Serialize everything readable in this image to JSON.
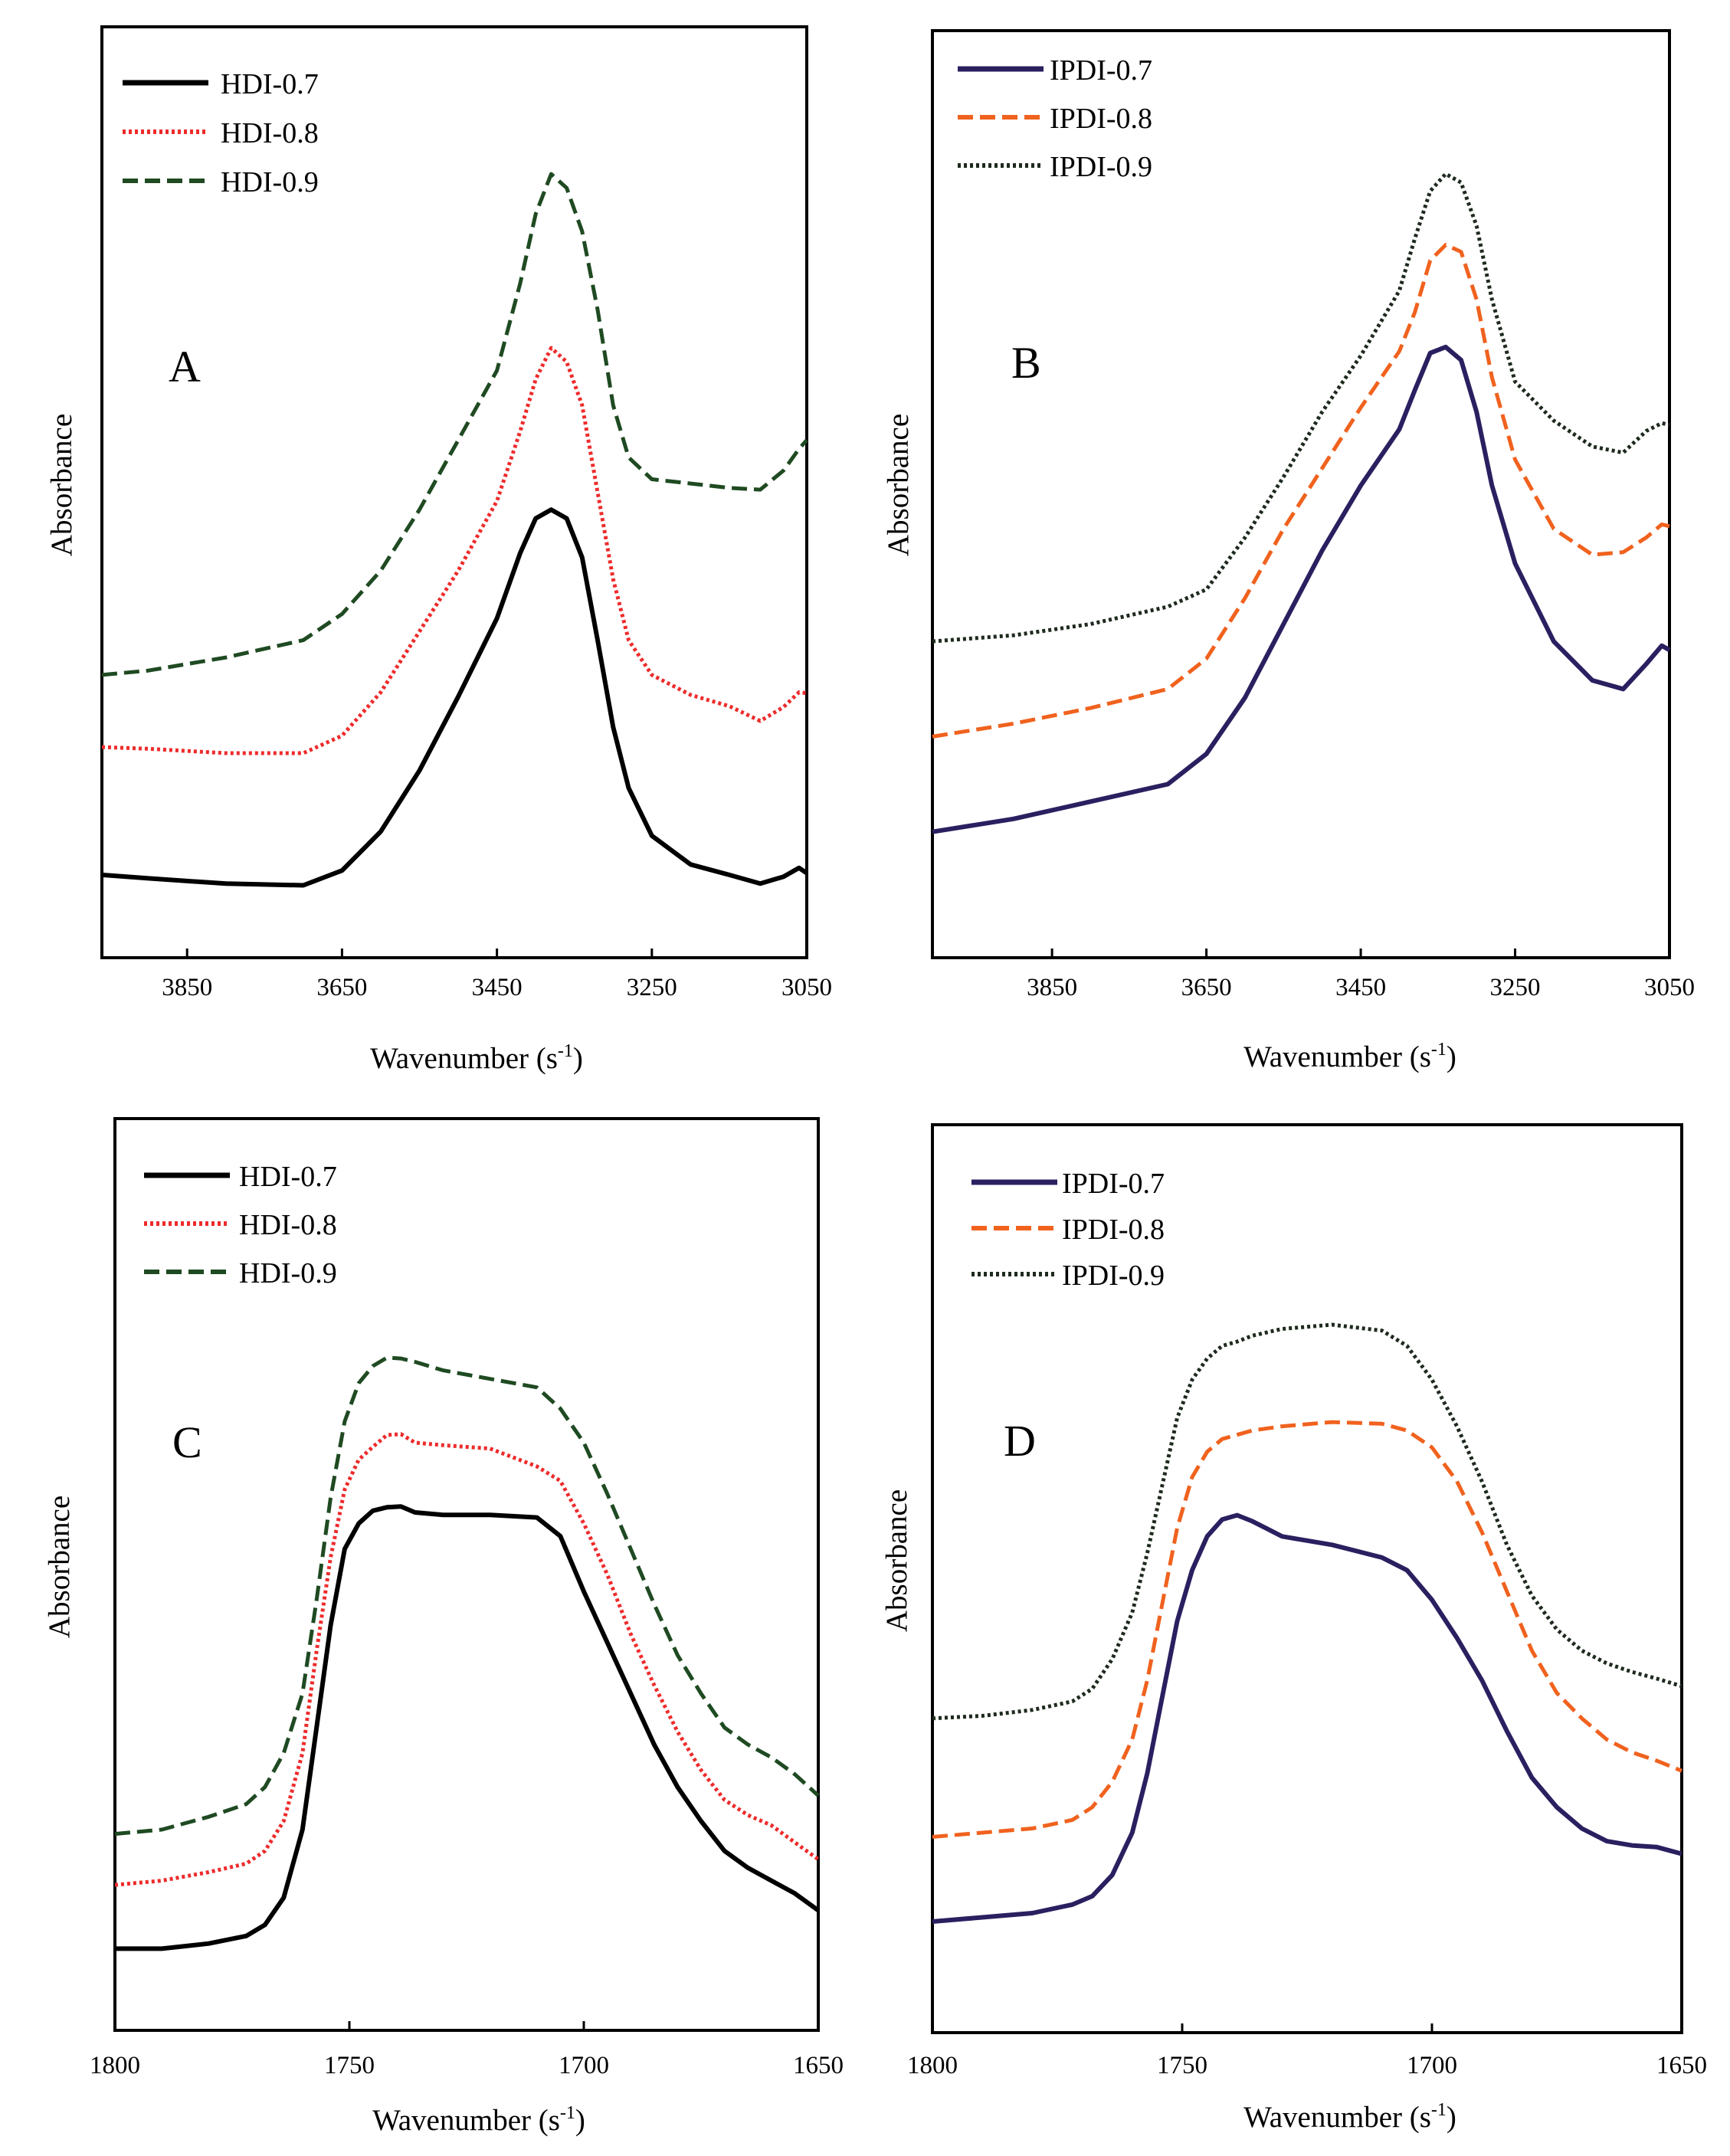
{
  "chart_data": [
    {
      "panel": "A",
      "type": "line",
      "xlabel": "Wavenumber (s",
      "xlabel_sup": "-1",
      "xlabel_close": ")",
      "ylabel": "Absorbance",
      "xlim": [
        3960,
        3050
      ],
      "ylim": [
        0,
        100
      ],
      "xticks": [
        3850,
        3650,
        3450,
        3250,
        3050
      ],
      "legend_position": "top-left",
      "series": [
        {
          "name": "HDI-0.7",
          "color": "#000000",
          "style": "solid",
          "x": [
            3960,
            3900,
            3800,
            3700,
            3650,
            3600,
            3550,
            3500,
            3450,
            3420,
            3400,
            3380,
            3360,
            3340,
            3320,
            3300,
            3280,
            3250,
            3200,
            3150,
            3110,
            3080,
            3060,
            3050
          ],
          "y": [
            6,
            5.6,
            5,
            4.8,
            6.5,
            11,
            18,
            26.5,
            35.5,
            43,
            47,
            48,
            47,
            42.5,
            33,
            23,
            16,
            10.5,
            7.2,
            6,
            5,
            5.8,
            6.8,
            6.2
          ]
        },
        {
          "name": "HDI-0.8",
          "color": "#ee2b2b",
          "style": "dotted",
          "x": [
            3960,
            3900,
            3800,
            3700,
            3650,
            3600,
            3550,
            3500,
            3450,
            3420,
            3400,
            3380,
            3360,
            3340,
            3320,
            3300,
            3280,
            3250,
            3200,
            3150,
            3110,
            3080,
            3060,
            3050
          ],
          "y": [
            20.7,
            20.5,
            20,
            20,
            22,
            27,
            34,
            41,
            49,
            57,
            63,
            66.6,
            65,
            60,
            50,
            40,
            33,
            29,
            26.7,
            25.4,
            23.7,
            25.3,
            27,
            26.9
          ]
        },
        {
          "name": "HDI-0.9",
          "color": "#1f4a22",
          "style": "dashed",
          "x": [
            3960,
            3900,
            3800,
            3700,
            3650,
            3600,
            3550,
            3500,
            3450,
            3420,
            3400,
            3380,
            3360,
            3340,
            3320,
            3300,
            3280,
            3250,
            3200,
            3150,
            3110,
            3080,
            3060,
            3050
          ],
          "y": [
            29,
            29.5,
            31,
            33,
            36,
            41,
            48,
            56,
            64,
            74,
            82,
            86.6,
            85,
            80,
            71,
            60,
            54,
            51.5,
            51,
            50.5,
            50.3,
            52.5,
            55,
            56
          ]
        }
      ]
    },
    {
      "panel": "B",
      "type": "line",
      "xlabel": "Wavenumber (s",
      "xlabel_sup": "-1",
      "xlabel_close": ")",
      "ylabel": "Absorbance",
      "xlim": [
        4005,
        3050
      ],
      "ylim": [
        0,
        100
      ],
      "xticks": [
        3850,
        3650,
        3450,
        3250,
        3050
      ],
      "legend_position": "top-left",
      "series": [
        {
          "name": "IPDI-0.7",
          "color": "#2a2060",
          "style": "solid",
          "x": [
            4005,
            3900,
            3800,
            3700,
            3650,
            3600,
            3550,
            3500,
            3450,
            3400,
            3380,
            3360,
            3340,
            3320,
            3300,
            3280,
            3250,
            3200,
            3150,
            3110,
            3080,
            3060,
            3050
          ],
          "y": [
            11,
            12.5,
            14.5,
            16.5,
            20,
            26.5,
            35,
            43.5,
            51,
            57.5,
            62,
            66.3,
            67,
            65.5,
            59.5,
            51,
            42,
            33,
            28.5,
            27.5,
            30.4,
            32.5,
            32
          ]
        },
        {
          "name": "IPDI-0.8",
          "color": "#f0621e",
          "style": "dashed",
          "x": [
            4005,
            3900,
            3800,
            3700,
            3650,
            3600,
            3550,
            3500,
            3450,
            3400,
            3380,
            3360,
            3340,
            3320,
            3300,
            3280,
            3250,
            3200,
            3150,
            3110,
            3080,
            3060,
            3050
          ],
          "y": [
            22,
            23.5,
            25.3,
            27.5,
            31,
            38,
            46,
            53,
            60,
            66.5,
            71,
            77,
            78.8,
            78,
            72.5,
            63.5,
            54,
            46,
            43,
            43.3,
            45,
            46.5,
            46.3
          ]
        },
        {
          "name": "IPDI-0.9",
          "color": "#1e2a1e",
          "style": "dotted",
          "x": [
            4005,
            3900,
            3800,
            3700,
            3650,
            3600,
            3550,
            3500,
            3450,
            3400,
            3380,
            3360,
            3340,
            3320,
            3300,
            3280,
            3250,
            3200,
            3150,
            3110,
            3080,
            3060,
            3050
          ],
          "y": [
            33,
            33.7,
            35,
            37,
            39,
            45,
            52,
            59.5,
            66,
            73.5,
            79.5,
            85,
            87,
            86,
            81,
            72.5,
            63,
            58.5,
            55.5,
            54.8,
            57.3,
            58.2,
            58
          ]
        }
      ]
    },
    {
      "panel": "C",
      "type": "line",
      "xlabel": "Wavenumber (s",
      "xlabel_sup": "-1",
      "xlabel_close": ")",
      "ylabel": "Absorbance",
      "xlim": [
        1800,
        1650
      ],
      "ylim": [
        0,
        100
      ],
      "xticks": [
        1800,
        1750,
        1700,
        1650
      ],
      "legend_position": "top-left",
      "series": [
        {
          "name": "HDI-0.7",
          "color": "#000000",
          "style": "solid",
          "x": [
            1800,
            1790,
            1780,
            1772,
            1768,
            1764,
            1760,
            1757,
            1754,
            1751,
            1748,
            1745,
            1742,
            1739,
            1736,
            1730,
            1720,
            1710,
            1705,
            1700,
            1695,
            1690,
            1685,
            1680,
            1675,
            1670,
            1665,
            1660,
            1655,
            1650
          ],
          "y": [
            6,
            6,
            6.6,
            7.5,
            8.8,
            12,
            20,
            32,
            44,
            53,
            56,
            57.5,
            57.9,
            58,
            57.3,
            57,
            57,
            56.7,
            54.5,
            48,
            42,
            36,
            30,
            25,
            21,
            17.5,
            15.5,
            14,
            12.5,
            10.5
          ]
        },
        {
          "name": "HDI-0.8",
          "color": "#ee2b2b",
          "style": "dotted",
          "x": [
            1800,
            1790,
            1780,
            1772,
            1768,
            1764,
            1760,
            1757,
            1754,
            1751,
            1748,
            1745,
            1742,
            1739,
            1736,
            1730,
            1720,
            1710,
            1705,
            1700,
            1695,
            1690,
            1685,
            1680,
            1675,
            1670,
            1665,
            1660,
            1655,
            1650
          ],
          "y": [
            13.5,
            14,
            15,
            16,
            17.5,
            21,
            29,
            41,
            52,
            60,
            63.5,
            65,
            66.4,
            66.5,
            65.5,
            65.2,
            64.8,
            62.7,
            61,
            56,
            50,
            43,
            37,
            31.5,
            27,
            23.5,
            21.7,
            20.5,
            18.5,
            16.5
          ]
        },
        {
          "name": "HDI-0.9",
          "color": "#1f4a22",
          "style": "dashed",
          "x": [
            1800,
            1790,
            1780,
            1772,
            1768,
            1764,
            1760,
            1757,
            1754,
            1751,
            1748,
            1745,
            1742,
            1739,
            1736,
            1730,
            1720,
            1710,
            1705,
            1700,
            1695,
            1690,
            1685,
            1680,
            1675,
            1670,
            1665,
            1660,
            1655,
            1650
          ],
          "y": [
            19.5,
            20,
            21.5,
            23,
            25,
            29,
            36,
            47,
            59,
            68,
            72.5,
            74.5,
            75.5,
            75.4,
            75,
            74,
            73,
            72,
            69.5,
            65.5,
            59.5,
            53,
            46.5,
            40.5,
            36,
            32,
            30,
            28.5,
            26.5,
            24
          ]
        }
      ]
    },
    {
      "panel": "D",
      "type": "line",
      "xlabel": "Wavenumber (s",
      "xlabel_sup": "-1",
      "xlabel_close": ")",
      "ylabel": "Absorbance",
      "xlim": [
        1800,
        1650
      ],
      "ylim": [
        0,
        100
      ],
      "xticks": [
        1800,
        1750,
        1700,
        1650
      ],
      "legend_position": "top-left",
      "series": [
        {
          "name": "IPDI-0.7",
          "color": "#2a2060",
          "style": "solid",
          "x": [
            1800,
            1790,
            1780,
            1772,
            1768,
            1764,
            1760,
            1757,
            1754,
            1751,
            1748,
            1745,
            1742,
            1739,
            1736,
            1730,
            1720,
            1710,
            1705,
            1700,
            1695,
            1690,
            1685,
            1680,
            1675,
            1670,
            1665,
            1660,
            1655,
            1650
          ],
          "y": [
            9.5,
            10,
            10.5,
            11.5,
            12.5,
            15,
            20,
            27,
            36,
            45,
            51,
            55,
            57,
            57.5,
            56.8,
            55,
            54,
            52.5,
            51,
            47.5,
            43,
            38,
            32,
            26.5,
            23,
            20.5,
            19,
            18.5,
            18.3,
            17.5
          ]
        },
        {
          "name": "IPDI-0.8",
          "color": "#f0621e",
          "style": "dashed",
          "x": [
            1800,
            1790,
            1780,
            1772,
            1768,
            1764,
            1760,
            1757,
            1754,
            1751,
            1748,
            1745,
            1742,
            1739,
            1736,
            1730,
            1720,
            1710,
            1705,
            1700,
            1695,
            1690,
            1685,
            1680,
            1675,
            1670,
            1665,
            1660,
            1655,
            1650
          ],
          "y": [
            19.5,
            20,
            20.5,
            21.5,
            23,
            26,
            31,
            38,
            47,
            56,
            62,
            65,
            66.5,
            67,
            67.5,
            68,
            68.5,
            68.3,
            67.5,
            65.5,
            61.5,
            55.5,
            48.5,
            41.5,
            36.5,
            33.5,
            31,
            29.5,
            28.5,
            27.3
          ]
        },
        {
          "name": "IPDI-0.9",
          "color": "#1e2a1e",
          "style": "dotted",
          "x": [
            1800,
            1790,
            1780,
            1772,
            1768,
            1764,
            1760,
            1757,
            1754,
            1751,
            1748,
            1745,
            1742,
            1739,
            1736,
            1730,
            1720,
            1710,
            1705,
            1700,
            1695,
            1690,
            1685,
            1680,
            1675,
            1670,
            1665,
            1660,
            1655,
            1650
          ],
          "y": [
            33.5,
            33.8,
            34.5,
            35.5,
            37,
            40.5,
            46,
            53,
            61,
            69,
            73.5,
            76,
            77.5,
            78,
            78.7,
            79.5,
            80,
            79.3,
            77.5,
            73.5,
            68,
            61.5,
            54,
            48,
            44,
            41.5,
            40,
            39,
            38.2,
            37.3
          ]
        }
      ]
    }
  ]
}
